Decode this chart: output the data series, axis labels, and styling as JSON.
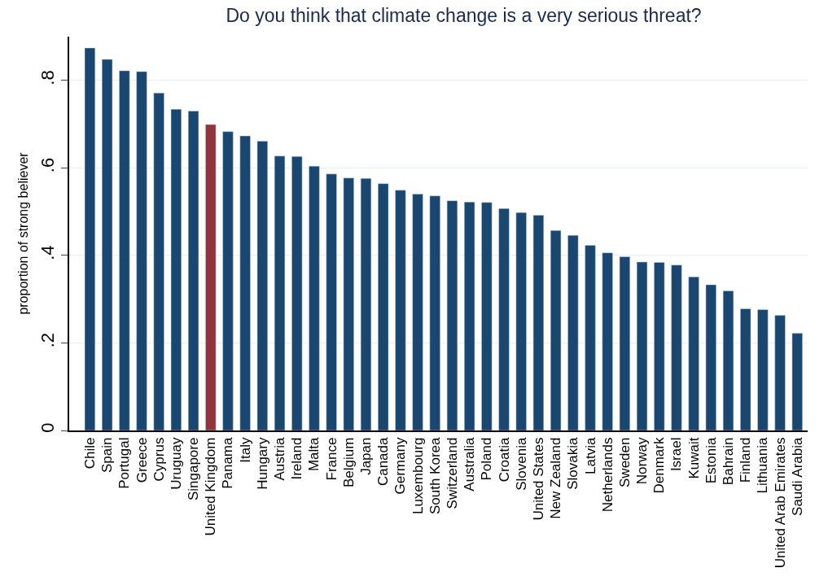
{
  "chart_data": {
    "type": "bar",
    "title": "Do you think that climate change is a very serious threat?",
    "ylabel": "proportion of strong believer",
    "categories": [
      "Chile",
      "Spain",
      "Portugal",
      "Greece",
      "Cyprus",
      "Uruguay",
      "Singapore",
      "United Kingdom",
      "Panama",
      "Italy",
      "Hungary",
      "Austria",
      "Ireland",
      "Malta",
      "France",
      "Belgium",
      "Japan",
      "Canada",
      "Germany",
      "Luxembourg",
      "South Korea",
      "Switzerland",
      "Australia",
      "Poland",
      "Croatia",
      "Slovenia",
      "United States",
      "New Zealand",
      "Slovakia",
      "Latvia",
      "Netherlands",
      "Sweden",
      "Norway",
      "Denmark",
      "Israel",
      "Kuwait",
      "Estonia",
      "Bahrain",
      "Finland",
      "Lithuania",
      "United Arab Emirates",
      "Saudi Arabia"
    ],
    "values": [
      0.874,
      0.848,
      0.822,
      0.82,
      0.771,
      0.734,
      0.73,
      0.699,
      0.683,
      0.673,
      0.661,
      0.627,
      0.626,
      0.604,
      0.586,
      0.577,
      0.576,
      0.564,
      0.549,
      0.54,
      0.536,
      0.525,
      0.522,
      0.521,
      0.507,
      0.498,
      0.492,
      0.457,
      0.446,
      0.423,
      0.406,
      0.397,
      0.385,
      0.384,
      0.378,
      0.351,
      0.333,
      0.319,
      0.278,
      0.276,
      0.263,
      0.222
    ],
    "colors": [
      "#1a476f",
      "#1a476f",
      "#1a476f",
      "#1a476f",
      "#1a476f",
      "#1a476f",
      "#1a476f",
      "#90353b",
      "#1a476f",
      "#1a476f",
      "#1a476f",
      "#1a476f",
      "#1a476f",
      "#1a476f",
      "#1a476f",
      "#1a476f",
      "#1a476f",
      "#1a476f",
      "#1a476f",
      "#1a476f",
      "#1a476f",
      "#1a476f",
      "#1a476f",
      "#1a476f",
      "#1a476f",
      "#1a476f",
      "#1a476f",
      "#1a476f",
      "#1a476f",
      "#1a476f",
      "#1a476f",
      "#1a476f",
      "#1a476f",
      "#1a476f",
      "#1a476f",
      "#1a476f",
      "#1a476f",
      "#1a476f",
      "#1a476f",
      "#1a476f",
      "#1a476f",
      "#1a476f"
    ],
    "ylim": [
      0,
      0.9
    ],
    "yticks": [
      0,
      {
        "value": 0.2,
        "label": ".2"
      },
      {
        "value": 0.4,
        "label": ".4"
      },
      {
        "value": 0.6,
        "label": ".6"
      },
      {
        "value": 0.8,
        "label": ".8"
      }
    ],
    "grid": "y"
  }
}
